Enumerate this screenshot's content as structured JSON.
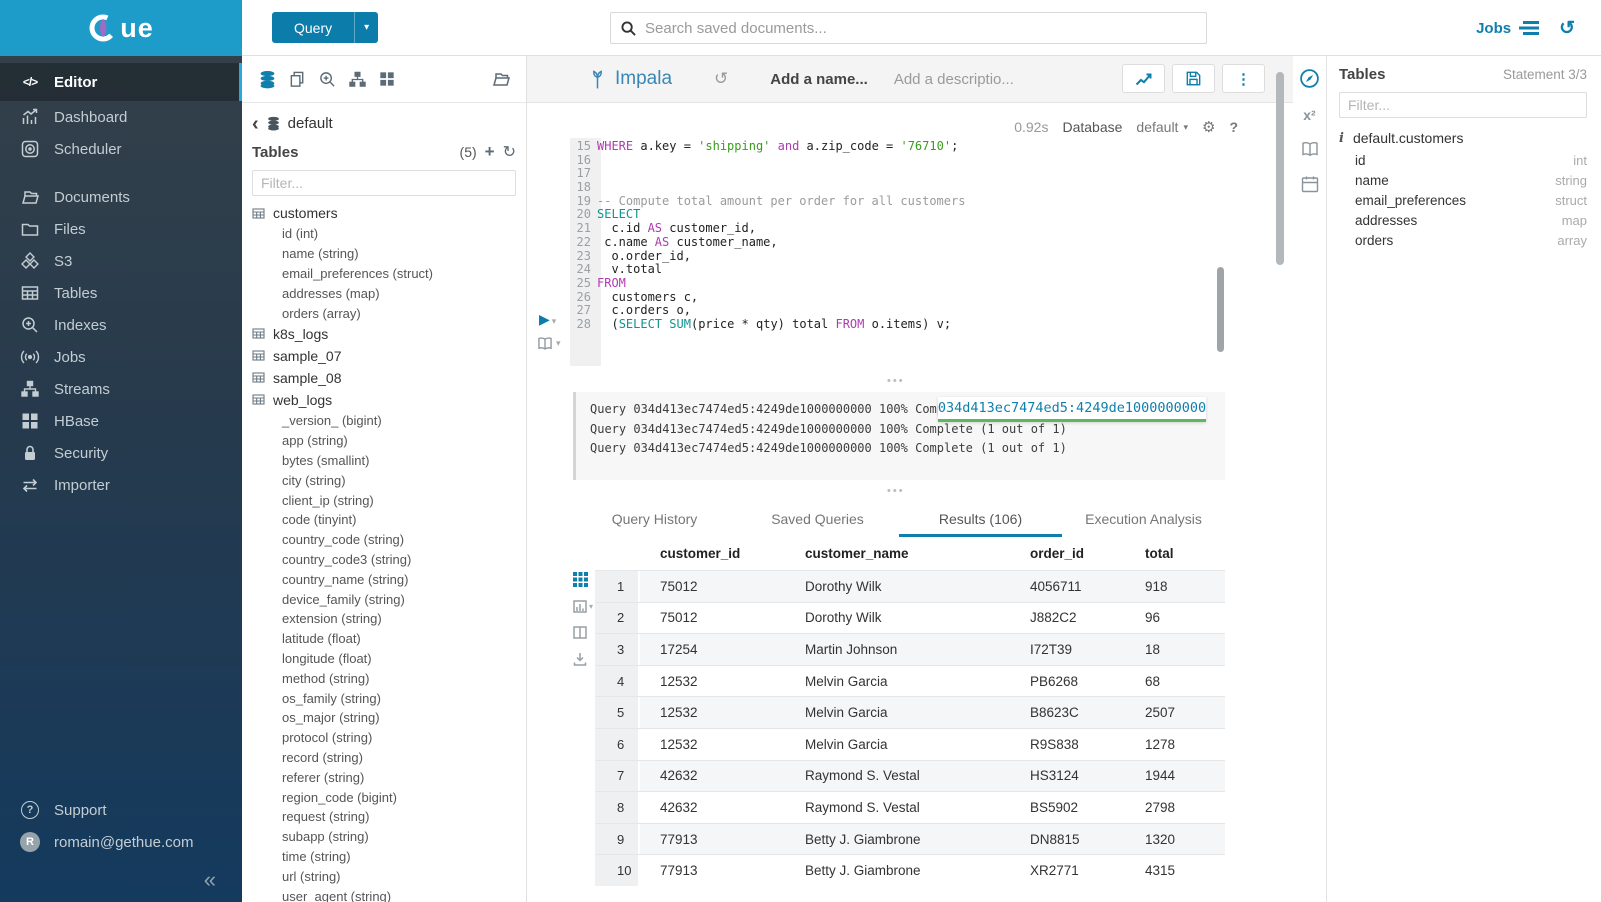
{
  "topbar": {
    "brand": "ue",
    "query_button": "Query",
    "search_placeholder": "Search saved documents...",
    "jobs_label": "Jobs"
  },
  "sidebar": {
    "items": [
      {
        "label": "Editor"
      },
      {
        "label": "Dashboard"
      },
      {
        "label": "Scheduler"
      },
      {
        "label": "Documents"
      },
      {
        "label": "Files"
      },
      {
        "label": "S3"
      },
      {
        "label": "Tables"
      },
      {
        "label": "Indexes"
      },
      {
        "label": "Jobs"
      },
      {
        "label": "Streams"
      },
      {
        "label": "HBase"
      },
      {
        "label": "Security"
      },
      {
        "label": "Importer"
      }
    ],
    "support": "Support",
    "user": "romain@gethue.com",
    "avatar_initial": "R"
  },
  "left_panel": {
    "database": "default",
    "tables_title": "Tables",
    "tables_count": "(5)",
    "filter_placeholder": "Filter...",
    "tables": [
      {
        "name": "customers",
        "columns": [
          "id (int)",
          "name (string)",
          "email_preferences (struct)",
          "addresses (map)",
          "orders (array)"
        ]
      },
      {
        "name": "k8s_logs",
        "columns": []
      },
      {
        "name": "sample_07",
        "columns": []
      },
      {
        "name": "sample_08",
        "columns": []
      },
      {
        "name": "web_logs",
        "columns": [
          "_version_ (bigint)",
          "app (string)",
          "bytes (smallint)",
          "city (string)",
          "client_ip (string)",
          "code (tinyint)",
          "country_code (string)",
          "country_code3 (string)",
          "country_name (string)",
          "device_family (string)",
          "extension (string)",
          "latitude (float)",
          "longitude (float)",
          "method (string)",
          "os_family (string)",
          "os_major (string)",
          "protocol (string)",
          "record (string)",
          "referer (string)",
          "region_code (bigint)",
          "request (string)",
          "subapp (string)",
          "time (string)",
          "url (string)",
          "user_agent (string)"
        ]
      }
    ]
  },
  "editor": {
    "engine": "Impala",
    "name_placeholder": "Add a name...",
    "desc_placeholder": "Add a descriptio...",
    "exec_time": "0.92s",
    "database_label": "Database",
    "database_value": "default",
    "code_lines": [
      {
        "n": "15",
        "parts": [
          {
            "t": "kw",
            "v": "WHERE"
          },
          {
            "t": "",
            "v": " a.key = "
          },
          {
            "t": "str",
            "v": "'shipping'"
          },
          {
            "t": "",
            "v": " "
          },
          {
            "t": "kw",
            "v": "and"
          },
          {
            "t": "",
            "v": " a.zip_code = "
          },
          {
            "t": "str",
            "v": "'76710'"
          },
          {
            "t": "",
            "v": ";"
          }
        ]
      },
      {
        "n": "16",
        "parts": []
      },
      {
        "n": "17",
        "parts": []
      },
      {
        "n": "18",
        "parts": []
      },
      {
        "n": "19",
        "parts": [
          {
            "t": "cmt",
            "v": "-- Compute total amount per order for all customers"
          }
        ]
      },
      {
        "n": "20",
        "parts": [
          {
            "t": "fn",
            "v": "SELECT"
          }
        ]
      },
      {
        "n": "21",
        "parts": [
          {
            "t": "",
            "v": "  c.id "
          },
          {
            "t": "kw",
            "v": "AS"
          },
          {
            "t": "",
            "v": " customer_id,"
          }
        ]
      },
      {
        "n": "22",
        "parts": [
          {
            "t": "",
            "v": " c.name "
          },
          {
            "t": "kw",
            "v": "AS"
          },
          {
            "t": "",
            "v": " customer_name,"
          }
        ]
      },
      {
        "n": "23",
        "parts": [
          {
            "t": "",
            "v": "  o.order_id,"
          }
        ]
      },
      {
        "n": "24",
        "parts": [
          {
            "t": "",
            "v": "  v.total"
          }
        ]
      },
      {
        "n": "25",
        "parts": [
          {
            "t": "kw",
            "v": "FROM"
          }
        ]
      },
      {
        "n": "26",
        "parts": [
          {
            "t": "",
            "v": "  customers c,"
          }
        ]
      },
      {
        "n": "27",
        "parts": [
          {
            "t": "",
            "v": "  c.orders o,"
          }
        ]
      },
      {
        "n": "28",
        "parts": [
          {
            "t": "",
            "v": "  ("
          },
          {
            "t": "fn",
            "v": "SELECT"
          },
          {
            "t": "",
            "v": " "
          },
          {
            "t": "fn",
            "v": "SUM"
          },
          {
            "t": "",
            "v": "(price * qty) total "
          },
          {
            "t": "kw",
            "v": "FROM"
          },
          {
            "t": "",
            "v": " o.items) v;"
          }
        ]
      }
    ]
  },
  "log": {
    "lines": [
      "Query 034d413ec7474ed5:4249de1000000000 100% Complete (1 out of 1)",
      "Query 034d413ec7474ed5:4249de1000000000 100% Complete (1 out of 1)",
      "Query 034d413ec7474ed5:4249de1000000000 100% Complete (1 out of 1)"
    ],
    "tooltip": "034d413ec7474ed5:4249de1000000000"
  },
  "tabs": {
    "items": [
      "Query History",
      "Saved Queries",
      "Results (106)",
      "Execution Analysis"
    ],
    "active_index": 2
  },
  "results": {
    "columns": [
      "customer_id",
      "customer_name",
      "order_id",
      "total"
    ],
    "rows": [
      [
        "1",
        "75012",
        "Dorothy Wilk",
        "4056711",
        "918"
      ],
      [
        "2",
        "75012",
        "Dorothy Wilk",
        "J882C2",
        "96"
      ],
      [
        "3",
        "17254",
        "Martin Johnson",
        "I72T39",
        "18"
      ],
      [
        "4",
        "12532",
        "Melvin Garcia",
        "PB6268",
        "68"
      ],
      [
        "5",
        "12532",
        "Melvin Garcia",
        "B8623C",
        "2507"
      ],
      [
        "6",
        "12532",
        "Melvin Garcia",
        "R9S838",
        "1278"
      ],
      [
        "7",
        "42632",
        "Raymond S. Vestal",
        "HS3124",
        "1944"
      ],
      [
        "8",
        "42632",
        "Raymond S. Vestal",
        "BS5902",
        "2798"
      ],
      [
        "9",
        "77913",
        "Betty J. Giambrone",
        "DN8815",
        "1320"
      ],
      [
        "10",
        "77913",
        "Betty J. Giambrone",
        "XR2771",
        "4315"
      ]
    ]
  },
  "right_panel": {
    "title": "Tables",
    "statement": "Statement 3/3",
    "filter_placeholder": "Filter...",
    "table_name": "default.customers",
    "columns": [
      {
        "name": "id",
        "type": "int"
      },
      {
        "name": "name",
        "type": "string"
      },
      {
        "name": "email_preferences",
        "type": "struct"
      },
      {
        "name": "addresses",
        "type": "map"
      },
      {
        "name": "orders",
        "type": "array"
      }
    ]
  },
  "colors": {
    "accent": "#0f7fad",
    "brand_bar": "#1d9bc9",
    "tab_underline": "#0f7fad",
    "tooltip_underline": "#5cb85c"
  }
}
